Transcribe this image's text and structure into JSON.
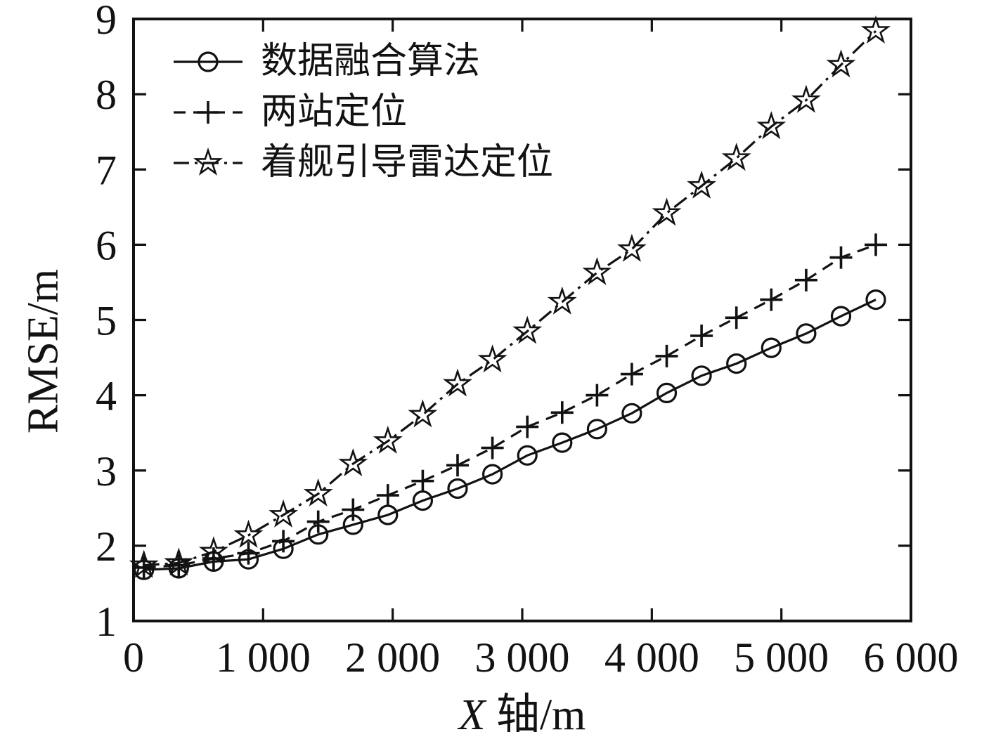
{
  "figure": {
    "background": "#ffffff",
    "ink_color": "#121212"
  },
  "chart_data": {
    "type": "line",
    "title": "",
    "xlabel": "X 轴/m",
    "xlabel_italic": "X",
    "xlabel_rest": " 轴/m",
    "ylabel": "RMSE/m",
    "xlim": [
      0,
      6000
    ],
    "ylim": [
      1,
      9
    ],
    "grid": false,
    "frame": "box with inward ticks on all four sides",
    "legend_position": "top-left inside, no border",
    "x_ticks": [
      {
        "value": 0,
        "label": "0"
      },
      {
        "value": 1000,
        "label": "1 000"
      },
      {
        "value": 2000,
        "label": "2 000"
      },
      {
        "value": 3000,
        "label": "3 000"
      },
      {
        "value": 4000,
        "label": "4 000"
      },
      {
        "value": 5000,
        "label": "5 000"
      },
      {
        "value": 6000,
        "label": "6 000"
      }
    ],
    "y_ticks": [
      {
        "value": 1,
        "label": "1"
      },
      {
        "value": 2,
        "label": "2"
      },
      {
        "value": 3,
        "label": "3"
      },
      {
        "value": 4,
        "label": "4"
      },
      {
        "value": 5,
        "label": "5"
      },
      {
        "value": 6,
        "label": "6"
      },
      {
        "value": 7,
        "label": "7"
      },
      {
        "value": 8,
        "label": "8"
      },
      {
        "value": 9,
        "label": "9"
      }
    ],
    "x": [
      80,
      349,
      618,
      887,
      1156,
      1425,
      1694,
      1963,
      2232,
      2501,
      2770,
      3039,
      3308,
      3577,
      3846,
      4115,
      4384,
      4653,
      4922,
      5191,
      5460,
      5729
    ],
    "series": [
      {
        "name": "数据融合算法",
        "marker": "circle",
        "line_style": "solid",
        "color": "#121212",
        "values": [
          1.68,
          1.7,
          1.79,
          1.82,
          1.96,
          2.15,
          2.28,
          2.41,
          2.6,
          2.76,
          2.95,
          3.2,
          3.37,
          3.55,
          3.76,
          4.03,
          4.26,
          4.42,
          4.63,
          4.82,
          5.05,
          5.27
        ]
      },
      {
        "name": "两站定位",
        "marker": "plus",
        "line_style": "dashed",
        "color": "#121212",
        "values": [
          1.71,
          1.74,
          1.83,
          1.9,
          2.06,
          2.32,
          2.48,
          2.67,
          2.86,
          3.07,
          3.3,
          3.58,
          3.77,
          4.0,
          4.28,
          4.52,
          4.79,
          5.03,
          5.27,
          5.53,
          5.83,
          6.0
        ]
      },
      {
        "name": "着舰引导雷达定位",
        "marker": "star",
        "line_style": "dashdot",
        "color": "#121212",
        "values": [
          1.74,
          1.77,
          1.92,
          2.14,
          2.41,
          2.69,
          3.09,
          3.39,
          3.74,
          4.15,
          4.47,
          4.85,
          5.24,
          5.63,
          5.94,
          6.42,
          6.78,
          7.15,
          7.57,
          7.92,
          8.39,
          8.84
        ]
      }
    ]
  }
}
